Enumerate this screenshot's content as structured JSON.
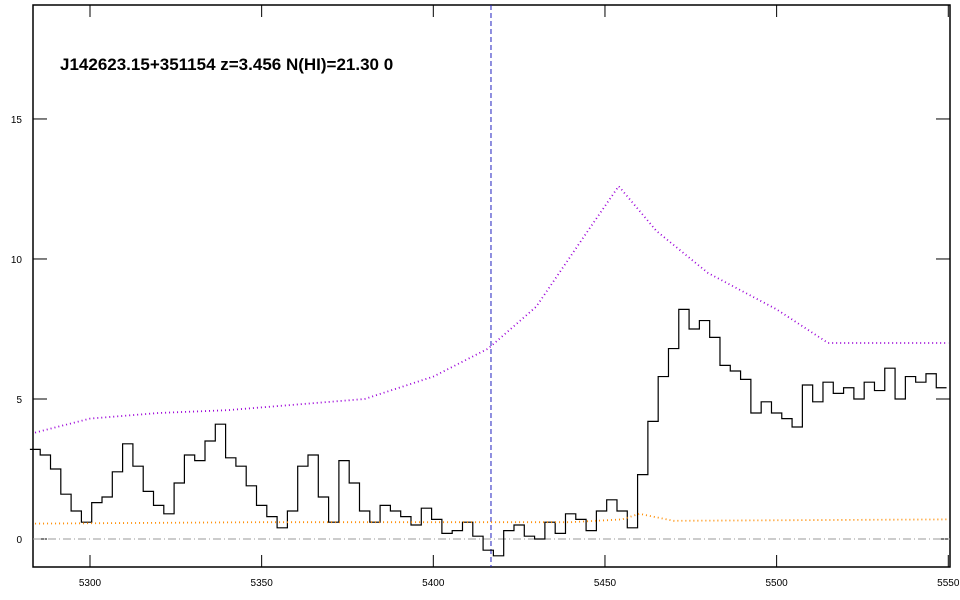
{
  "chart_data": {
    "type": "spectrum",
    "title": "J142623.15+351154 z=3.456 N(HI)=21.30 0",
    "xlim": [
      5283.4,
      5550.5
    ],
    "ylim": [
      -1,
      19.07
    ],
    "xticks": [
      5300,
      5350,
      5400,
      5450,
      5500,
      5550
    ],
    "yticks": [
      0,
      5,
      10,
      15
    ],
    "vline": 5416.8,
    "hline": 0,
    "series": [
      {
        "style": "step",
        "color": "#000000",
        "x": [
          5284,
          5287,
          5290,
          5293,
          5296,
          5299,
          5302,
          5305,
          5308,
          5311,
          5314,
          5317,
          5320,
          5323,
          5326,
          5329,
          5332,
          5335,
          5338,
          5341,
          5344,
          5347,
          5350,
          5353,
          5356,
          5359,
          5362,
          5365,
          5368,
          5371,
          5374,
          5377,
          5380,
          5383,
          5386,
          5389,
          5392,
          5395,
          5398,
          5401,
          5404,
          5407,
          5410,
          5413,
          5416,
          5419,
          5422,
          5425,
          5428,
          5431,
          5434,
          5437,
          5440,
          5443,
          5446,
          5449,
          5452,
          5455,
          5458,
          5461,
          5464,
          5467,
          5470,
          5473,
          5476,
          5479,
          5482,
          5485,
          5488,
          5491,
          5494,
          5497,
          5500,
          5503,
          5506,
          5509,
          5512,
          5515,
          5518,
          5521,
          5524,
          5527,
          5530,
          5533,
          5536,
          5539,
          5542,
          5545,
          5548
        ],
        "values": [
          3.2,
          3.0,
          2.5,
          1.6,
          1.0,
          0.6,
          1.3,
          1.5,
          2.4,
          3.4,
          2.6,
          1.7,
          1.2,
          0.9,
          2.0,
          3.0,
          2.8,
          3.5,
          4.1,
          2.9,
          2.6,
          1.9,
          1.2,
          0.8,
          0.4,
          1.0,
          2.6,
          3.0,
          1.5,
          0.6,
          2.8,
          2.0,
          1.0,
          0.6,
          1.2,
          1.0,
          0.8,
          0.5,
          1.1,
          0.7,
          0.2,
          0.3,
          0.6,
          0.1,
          -0.4,
          -0.6,
          0.3,
          0.5,
          0.1,
          0.0,
          0.6,
          0.2,
          0.9,
          0.7,
          0.3,
          1.0,
          1.4,
          1.0,
          0.4,
          2.3,
          4.2,
          5.8,
          6.8,
          8.2,
          7.5,
          7.8,
          7.2,
          6.2,
          6.0,
          5.7,
          4.5,
          4.9,
          4.5,
          4.3,
          4.0,
          5.5,
          4.9,
          5.6,
          5.2,
          5.4,
          5.0,
          5.6,
          5.3,
          6.1,
          5.0,
          5.8,
          5.6,
          5.9,
          5.4
        ]
      },
      {
        "style": "dotted",
        "color": "#9b00d8",
        "x": [
          5284,
          5300,
          5320,
          5340,
          5360,
          5380,
          5400,
          5416,
          5430,
          5445,
          5454,
          5465,
          5480,
          5500,
          5515,
          5550
        ],
        "values": [
          3.8,
          4.3,
          4.5,
          4.6,
          4.8,
          5.0,
          5.8,
          6.8,
          8.3,
          11.0,
          12.6,
          11.0,
          9.5,
          8.2,
          7.0,
          7.0
        ]
      },
      {
        "style": "dotted",
        "color": "#ff8c00",
        "x": [
          5284,
          5350,
          5400,
          5440,
          5455,
          5460,
          5470,
          5550
        ],
        "values": [
          0.55,
          0.6,
          0.6,
          0.6,
          0.7,
          0.9,
          0.65,
          0.7
        ]
      }
    ]
  }
}
